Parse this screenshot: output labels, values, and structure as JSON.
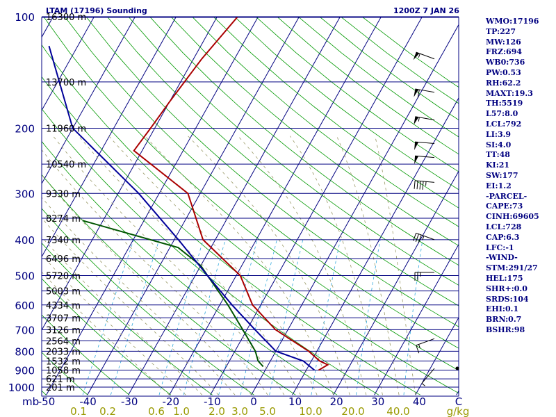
{
  "header": {
    "title": "LTAM (17196) Sounding",
    "time": "1200Z 7 JAN 26"
  },
  "indices": [
    "WMO:17196",
    "TP:227",
    "MW:126",
    "FRZ:694",
    "WB0:736",
    "PW:0.53",
    "RH:62.2",
    "MAXT:19.3",
    "TH:5519",
    "L57:8.0",
    "LCL:792",
    "LI:3.9",
    "SI:4.0",
    "TT:48",
    "KI:21",
    "SW:177",
    "EI:1.2",
    "-PARCEL-",
    "CAPE:73",
    "CINH:69605",
    "LCL:728",
    "CAP:6.3",
    "LFC:-1",
    "-WIND-",
    "STM:291/27",
    "HEL:175",
    "SHR+:0.0",
    "SRDS:104",
    "EHI:0.1",
    "BRN:0.7",
    "BSHR:98"
  ],
  "colors": {
    "isobar": "#000080",
    "isotherm": "#000080",
    "dry_adiabat": "#009900",
    "moist_adiabat": "#999966",
    "mixing_ratio": "#33aadd",
    "temperature": "#aa0000",
    "dewpoint": "#005500",
    "parcel": "#000099",
    "axis_text": "#000080",
    "mixing_text": "#999900"
  },
  "chart_data": {
    "type": "line",
    "title": "LTAM (17196) Sounding",
    "subtitle": "1200Z 7 JAN 26",
    "y_axis": {
      "label": "mb",
      "scale": "log",
      "ticks": [
        100,
        200,
        300,
        400,
        500,
        600,
        700,
        800,
        900,
        1000
      ],
      "range": [
        100,
        1050
      ]
    },
    "x_axis": {
      "label": "C",
      "ticks": [
        -50,
        -40,
        -30,
        -20,
        -10,
        0,
        10,
        20,
        30,
        40
      ]
    },
    "mixing_ratio_labels": [
      "0.1",
      "0.2",
      "0.6",
      "1.0",
      "2.0",
      "3.0",
      "5.0",
      "10.0",
      "20.0",
      "40.0",
      "g/kg"
    ],
    "height_labels": [
      {
        "p": 100,
        "h": "16300 m"
      },
      {
        "p": 150,
        "h": "13700 m"
      },
      {
        "p": 200,
        "h": "11960 m"
      },
      {
        "p": 250,
        "h": "10540 m"
      },
      {
        "p": 300,
        "h": "9330 m"
      },
      {
        "p": 350,
        "h": "8274 m"
      },
      {
        "p": 400,
        "h": "7340 m"
      },
      {
        "p": 450,
        "h": "6496 m"
      },
      {
        "p": 500,
        "h": "5720 m"
      },
      {
        "p": 550,
        "h": "5003 m"
      },
      {
        "p": 600,
        "h": "4334 m"
      },
      {
        "p": 650,
        "h": "3707 m"
      },
      {
        "p": 700,
        "h": "3126 m"
      },
      {
        "p": 750,
        "h": "2564 m"
      },
      {
        "p": 800,
        "h": "2033 m"
      },
      {
        "p": 850,
        "h": "1532 m"
      },
      {
        "p": 900,
        "h": "1058 m"
      },
      {
        "p": 950,
        "h": "621 m"
      },
      {
        "p": 1000,
        "h": "201 m"
      }
    ],
    "series": [
      {
        "name": "Temperature",
        "points": [
          [
            100,
            -55
          ],
          [
            130,
            -58
          ],
          [
            170,
            -60
          ],
          [
            200,
            -61
          ],
          [
            230,
            -62
          ],
          [
            300,
            -43
          ],
          [
            400,
            -33
          ],
          [
            500,
            -19
          ],
          [
            600,
            -12
          ],
          [
            700,
            -3
          ],
          [
            800,
            8
          ],
          [
            850,
            12
          ],
          [
            870,
            14.5
          ],
          [
            900,
            13
          ]
        ]
      },
      {
        "name": "Dewpoint",
        "points": [
          [
            355,
            -65
          ],
          [
            420,
            -38
          ],
          [
            470,
            -30
          ],
          [
            500,
            -27
          ],
          [
            600,
            -18
          ],
          [
            700,
            -11
          ],
          [
            800,
            -5
          ],
          [
            850,
            -3
          ],
          [
            880,
            -1
          ]
        ]
      },
      {
        "name": "Parcel",
        "points": [
          [
            120,
            -97
          ],
          [
            200,
            -80
          ],
          [
            300,
            -55
          ],
          [
            400,
            -39
          ],
          [
            500,
            -27
          ],
          [
            600,
            -17
          ],
          [
            700,
            -8
          ],
          [
            800,
            0
          ],
          [
            850,
            8
          ],
          [
            900,
            12
          ]
        ]
      }
    ],
    "wind_barbs": [
      {
        "p": 130,
        "dir": 290,
        "kt": 55
      },
      {
        "p": 160,
        "dir": 280,
        "kt": 60
      },
      {
        "p": 190,
        "dir": 280,
        "kt": 55
      },
      {
        "p": 220,
        "dir": 275,
        "kt": 50
      },
      {
        "p": 240,
        "dir": 275,
        "kt": 50
      },
      {
        "p": 280,
        "dir": 275,
        "kt": 45
      },
      {
        "p": 400,
        "dir": 290,
        "kt": 35
      },
      {
        "p": 490,
        "dir": 270,
        "kt": 25
      },
      {
        "p": 740,
        "dir": 250,
        "kt": 15
      },
      {
        "p": 890,
        "dir": 220,
        "kt": 5
      }
    ]
  }
}
